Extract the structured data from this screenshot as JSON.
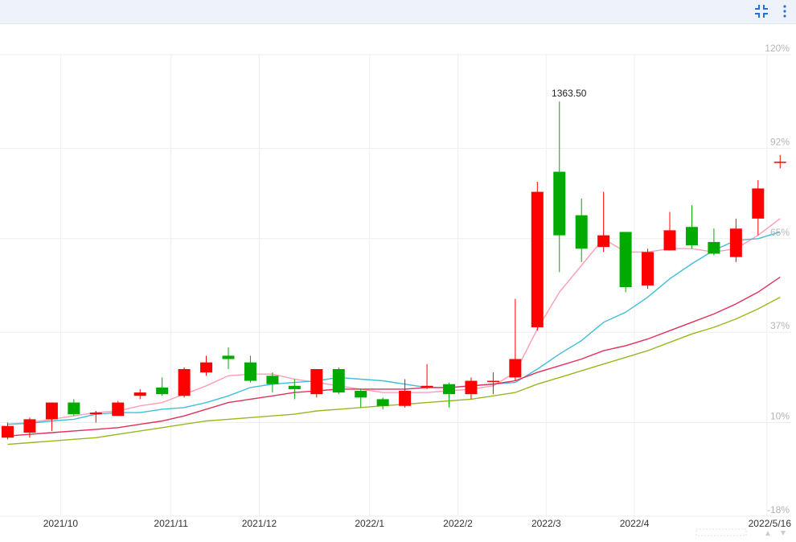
{
  "toolbar": {
    "collapse_icon": "collapse-icon",
    "menu_icon": "more-vertical-icon"
  },
  "colors": {
    "up": "#ff0000",
    "down": "#00aa00",
    "ma5": "#ff9db5",
    "ma10": "#3fbfd9",
    "ma20": "#e0305a",
    "ma30": "#99b81e",
    "grid": "#eeeeee"
  },
  "chart_data": {
    "type": "candlestick",
    "title": "",
    "xlabel": "",
    "ylabel": "",
    "y_unit": "percent",
    "ylim": [
      -18,
      120
    ],
    "y_ticks": [
      {
        "value": 120,
        "label": "120%"
      },
      {
        "value": 92,
        "label": "92%"
      },
      {
        "value": 65,
        "label": "65%"
      },
      {
        "value": 37,
        "label": "37%"
      },
      {
        "value": 10,
        "label": "10%"
      },
      {
        "value": -18,
        "label": "-18%"
      }
    ],
    "x_ticks": [
      {
        "index": 2,
        "label": "2021/10"
      },
      {
        "index": 7,
        "label": "2021/11"
      },
      {
        "index": 11,
        "label": "2021/12"
      },
      {
        "index": 16,
        "label": "2022/1"
      },
      {
        "index": 20,
        "label": "2022/2"
      },
      {
        "index": 24,
        "label": "2022/3"
      },
      {
        "index": 28,
        "label": "2022/4"
      },
      {
        "index": 34,
        "label": "2022/5/16"
      }
    ],
    "peak_label": {
      "index": 25,
      "text": "1363.50"
    },
    "candles": [
      {
        "o": 5.5,
        "c": 9.0,
        "h": 10.0,
        "l": 5.0
      },
      {
        "o": 7.0,
        "c": 11.0,
        "h": 11.5,
        "l": 5.5
      },
      {
        "o": 11.0,
        "c": 16.0,
        "h": 16.0,
        "l": 7.5
      },
      {
        "o": 16.0,
        "c": 12.5,
        "h": 17.0,
        "l": 12.0
      },
      {
        "o": 12.5,
        "c": 13.0,
        "h": 13.5,
        "l": 10.0
      },
      {
        "o": 12.0,
        "c": 16.0,
        "h": 16.5,
        "l": 12.0
      },
      {
        "o": 18.0,
        "c": 19.0,
        "h": 20.0,
        "l": 17.0
      },
      {
        "o": 20.5,
        "c": 18.5,
        "h": 23.5,
        "l": 18.0
      },
      {
        "o": 18.0,
        "c": 26.0,
        "h": 26.5,
        "l": 17.5
      },
      {
        "o": 25.0,
        "c": 28.0,
        "h": 30.0,
        "l": 24.0
      },
      {
        "o": 30.0,
        "c": 29.0,
        "h": 32.5,
        "l": 26.0
      },
      {
        "o": 28.0,
        "c": 22.5,
        "h": 30.0,
        "l": 22.0
      },
      {
        "o": 24.0,
        "c": 21.5,
        "h": 25.0,
        "l": 19.0
      },
      {
        "o": 21.0,
        "c": 20.0,
        "h": 23.0,
        "l": 17.0
      },
      {
        "o": 18.5,
        "c": 26.0,
        "h": 26.0,
        "l": 17.5
      },
      {
        "o": 26.0,
        "c": 19.0,
        "h": 26.5,
        "l": 18.5
      },
      {
        "o": 19.5,
        "c": 17.5,
        "h": 20.0,
        "l": 14.5
      },
      {
        "o": 17.0,
        "c": 15.0,
        "h": 17.5,
        "l": 14.0
      },
      {
        "o": 15.0,
        "c": 19.5,
        "h": 23.0,
        "l": 14.5
      },
      {
        "o": 20.5,
        "c": 21.0,
        "h": 27.5,
        "l": 20.0
      },
      {
        "o": 21.5,
        "c": 18.5,
        "h": 22.0,
        "l": 14.5
      },
      {
        "o": 18.5,
        "c": 22.5,
        "h": 23.5,
        "l": 17.0
      },
      {
        "o": 22.5,
        "c": 22.5,
        "h": 25.0,
        "l": 18.5
      },
      {
        "o": 23.5,
        "c": 29.0,
        "h": 47.0,
        "l": 22.5
      },
      {
        "o": 38.5,
        "c": 79.0,
        "h": 82.0,
        "l": 37.5
      },
      {
        "o": 85.0,
        "c": 66.0,
        "h": 106.0,
        "l": 55.0
      },
      {
        "o": 72.0,
        "c": 62.0,
        "h": 77.0,
        "l": 58.0
      },
      {
        "o": 62.5,
        "c": 66.0,
        "h": 79.0,
        "l": 61.0
      },
      {
        "o": 67.0,
        "c": 50.5,
        "h": 67.0,
        "l": 49.0
      },
      {
        "o": 51.0,
        "c": 61.0,
        "h": 62.0,
        "l": 50.0
      },
      {
        "o": 61.5,
        "c": 67.5,
        "h": 73.0,
        "l": 61.5
      },
      {
        "o": 68.5,
        "c": 63.0,
        "h": 75.0,
        "l": 62.0
      },
      {
        "o": 64.0,
        "c": 60.5,
        "h": 68.0,
        "l": 60.0
      },
      {
        "o": 59.5,
        "c": 68.0,
        "h": 71.0,
        "l": 58.0
      },
      {
        "o": 71.0,
        "c": 80.0,
        "h": 82.5,
        "l": 66.0
      },
      {
        "o": 88.0,
        "c": 88.0,
        "h": 90.0,
        "l": 86.0
      }
    ],
    "series": [
      {
        "key": "ma5",
        "values": [
          9.5,
          10,
          11,
          12,
          13,
          13.5,
          15,
          16,
          18.5,
          21,
          24,
          24.5,
          24.5,
          23,
          22,
          21,
          20,
          19,
          19,
          19,
          19.5,
          20,
          21,
          25,
          38,
          49,
          57,
          65,
          61,
          61,
          62,
          62,
          61,
          62,
          66,
          71
        ]
      },
      {
        "key": "ma10",
        "values": [
          9.5,
          9.8,
          10.5,
          11,
          12.5,
          13,
          13,
          14,
          14.5,
          16,
          18,
          20.5,
          21.5,
          22,
          22.5,
          23.5,
          23,
          22.5,
          21.5,
          20.5,
          20.5,
          21,
          21.5,
          22,
          26,
          30.5,
          34.5,
          40,
          43,
          47.5,
          53,
          57.5,
          61.5,
          64.5,
          65,
          67
        ]
      },
      {
        "key": "ma20",
        "values": [
          6,
          6.5,
          7,
          7.5,
          8,
          8.5,
          9.5,
          10.5,
          12,
          14,
          16,
          17,
          18,
          19,
          19.5,
          20,
          20,
          20,
          20,
          20.5,
          20.5,
          21,
          21.5,
          22.5,
          25,
          27,
          29,
          31.5,
          33,
          35,
          37.5,
          40,
          42.5,
          45.5,
          49,
          53.5
        ]
      },
      {
        "key": "ma30",
        "values": [
          3.5,
          4,
          4.5,
          5,
          5.5,
          6.5,
          7.5,
          8.5,
          9.5,
          10.5,
          11,
          11.5,
          12,
          12.5,
          13.5,
          14,
          14.5,
          15,
          15.5,
          16,
          16.5,
          17,
          18,
          19,
          21.5,
          23.5,
          25.5,
          27.5,
          29.5,
          31.5,
          34,
          36.5,
          38.5,
          41,
          44,
          47.5
        ]
      }
    ]
  }
}
